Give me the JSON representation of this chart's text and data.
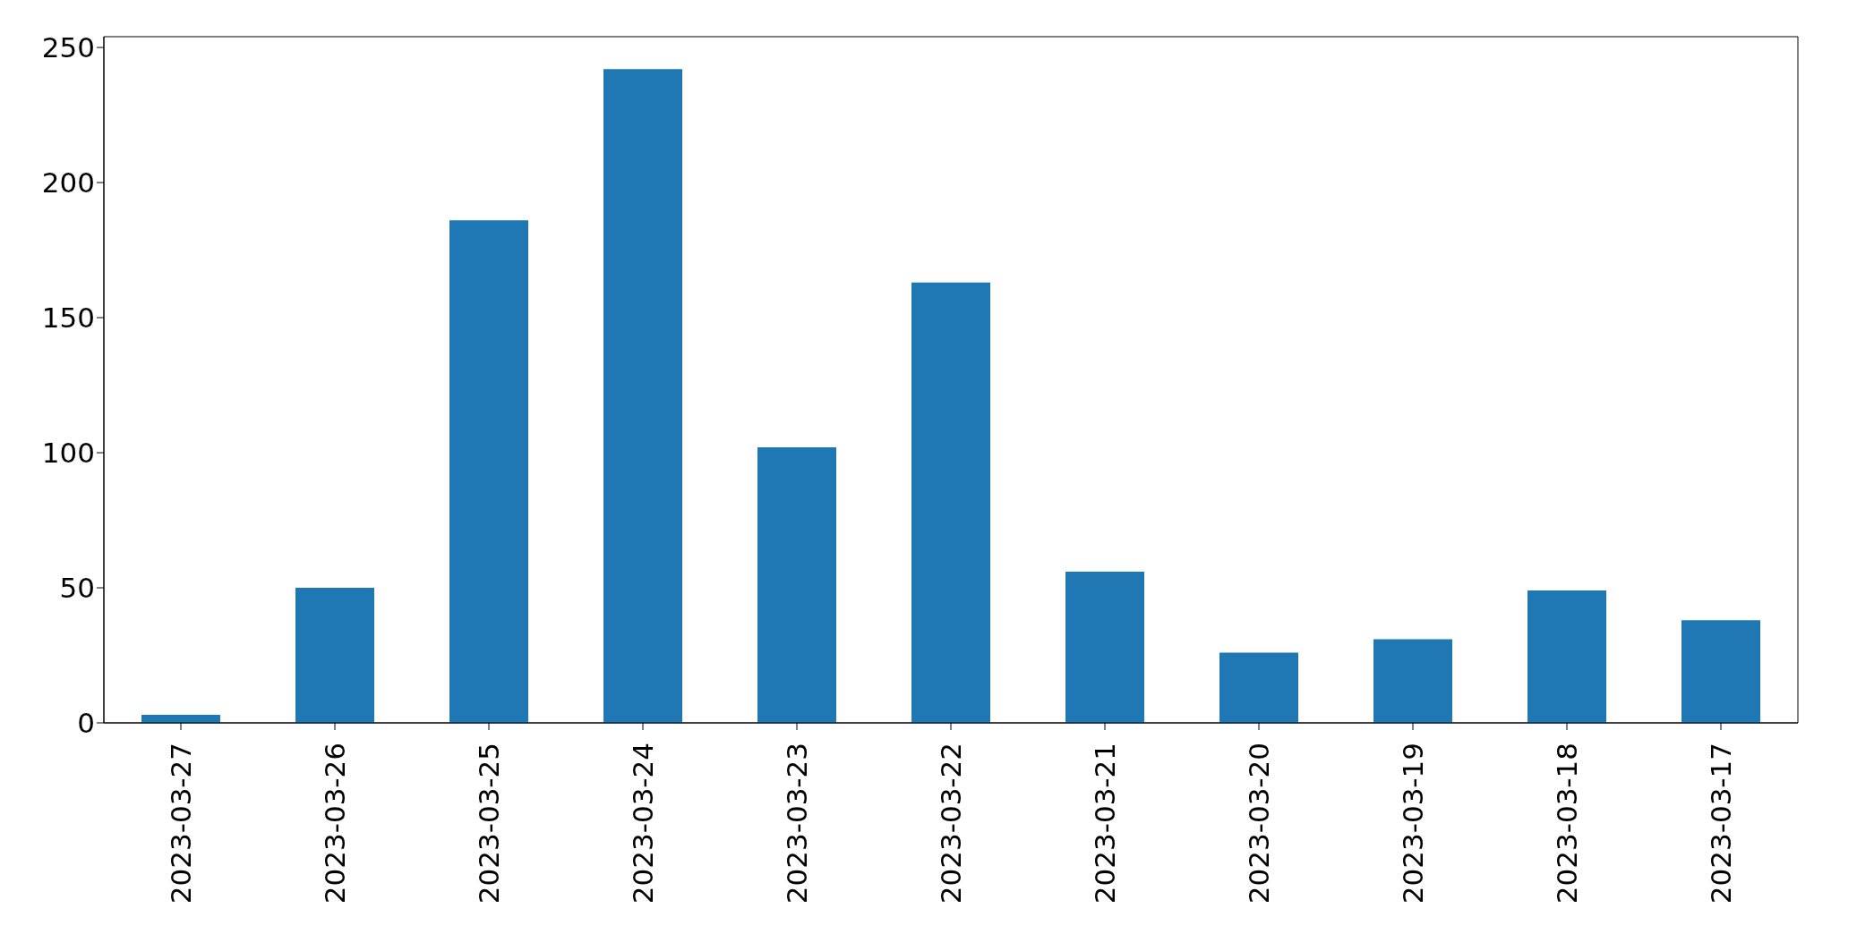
{
  "chart_data": {
    "type": "bar",
    "categories": [
      "2023-03-27",
      "2023-03-26",
      "2023-03-25",
      "2023-03-24",
      "2023-03-23",
      "2023-03-22",
      "2023-03-21",
      "2023-03-20",
      "2023-03-19",
      "2023-03-18",
      "2023-03-17"
    ],
    "values": [
      3,
      50,
      186,
      242,
      102,
      163,
      56,
      26,
      31,
      49,
      38
    ],
    "color": "#1f77b4",
    "ylim": [
      0,
      254
    ],
    "yticks": [
      0,
      50,
      100,
      150,
      200,
      250
    ],
    "grid": false
  }
}
